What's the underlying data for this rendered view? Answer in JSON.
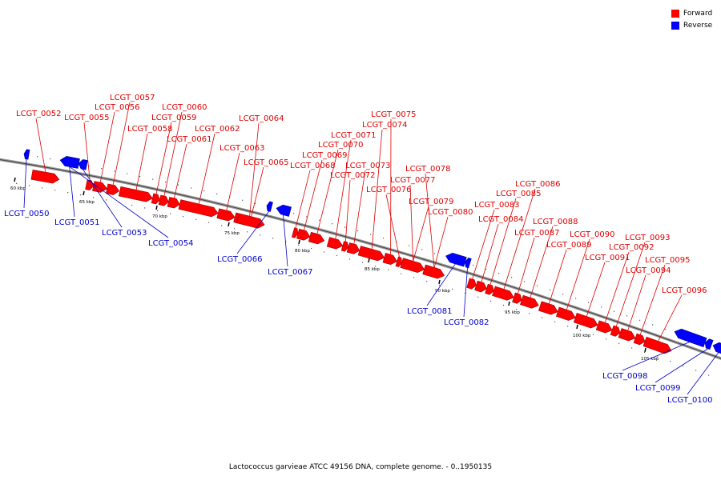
{
  "legend": {
    "forward_label": "Forward",
    "reverse_label": "Reverse",
    "forward_color": "#ff0000",
    "reverse_color": "#0000ff"
  },
  "caption": "Lactococcus garvieae ATCC 49156 DNA, complete genome. - 0..1950135",
  "colors": {
    "forward_label": "#e00000",
    "reverse_label": "#0000cc",
    "backbone": "#888888"
  },
  "ticks": [
    "60 kbp",
    "65 kbp",
    "70 kbp",
    "75 kbp",
    "80 kbp",
    "85 kbp",
    "90 kbp",
    "95 kbp",
    "100 kbp",
    "105 kbp"
  ],
  "genes": [
    {
      "name": "LCGT_0050",
      "strand": "reverse"
    },
    {
      "name": "LCGT_0051",
      "strand": "reverse"
    },
    {
      "name": "LCGT_0052",
      "strand": "forward"
    },
    {
      "name": "LCGT_0053",
      "strand": "reverse"
    },
    {
      "name": "LCGT_0054",
      "strand": "reverse"
    },
    {
      "name": "LCGT_0055",
      "strand": "forward"
    },
    {
      "name": "LCGT_0056",
      "strand": "forward"
    },
    {
      "name": "LCGT_0057",
      "strand": "forward"
    },
    {
      "name": "LCGT_0058",
      "strand": "forward"
    },
    {
      "name": "LCGT_0059",
      "strand": "forward"
    },
    {
      "name": "LCGT_0060",
      "strand": "forward"
    },
    {
      "name": "LCGT_0061",
      "strand": "forward"
    },
    {
      "name": "LCGT_0062",
      "strand": "forward"
    },
    {
      "name": "LCGT_0063",
      "strand": "forward"
    },
    {
      "name": "LCGT_0064",
      "strand": "forward"
    },
    {
      "name": "LCGT_0065",
      "strand": "forward"
    },
    {
      "name": "LCGT_0066",
      "strand": "reverse"
    },
    {
      "name": "LCGT_0067",
      "strand": "reverse"
    },
    {
      "name": "LCGT_0068",
      "strand": "forward"
    },
    {
      "name": "LCGT_0069",
      "strand": "forward"
    },
    {
      "name": "LCGT_0070",
      "strand": "forward"
    },
    {
      "name": "LCGT_0071",
      "strand": "forward"
    },
    {
      "name": "LCGT_0072",
      "strand": "forward"
    },
    {
      "name": "LCGT_0073",
      "strand": "forward"
    },
    {
      "name": "LCGT_0074",
      "strand": "forward"
    },
    {
      "name": "LCGT_0075",
      "strand": "forward"
    },
    {
      "name": "LCGT_0076",
      "strand": "forward"
    },
    {
      "name": "LCGT_0077",
      "strand": "forward"
    },
    {
      "name": "LCGT_0078",
      "strand": "forward"
    },
    {
      "name": "LCGT_0079",
      "strand": "forward"
    },
    {
      "name": "LCGT_0080",
      "strand": "forward"
    },
    {
      "name": "LCGT_0081",
      "strand": "reverse"
    },
    {
      "name": "LCGT_0082",
      "strand": "reverse"
    },
    {
      "name": "LCGT_0083",
      "strand": "forward"
    },
    {
      "name": "LCGT_0084",
      "strand": "forward"
    },
    {
      "name": "LCGT_0085",
      "strand": "forward"
    },
    {
      "name": "LCGT_0086",
      "strand": "forward"
    },
    {
      "name": "LCGT_0087",
      "strand": "forward"
    },
    {
      "name": "LCGT_0088",
      "strand": "forward"
    },
    {
      "name": "LCGT_0089",
      "strand": "forward"
    },
    {
      "name": "LCGT_0090",
      "strand": "forward"
    },
    {
      "name": "LCGT_0091",
      "strand": "forward"
    },
    {
      "name": "LCGT_0092",
      "strand": "forward"
    },
    {
      "name": "LCGT_0093",
      "strand": "forward"
    },
    {
      "name": "LCGT_0094",
      "strand": "forward"
    },
    {
      "name": "LCGT_0095",
      "strand": "forward"
    },
    {
      "name": "LCGT_0096",
      "strand": "forward"
    },
    {
      "name": "LCGT_0098",
      "strand": "reverse"
    },
    {
      "name": "LCGT_0099",
      "strand": "reverse"
    },
    {
      "name": "LCGT_0100",
      "strand": "reverse"
    }
  ]
}
